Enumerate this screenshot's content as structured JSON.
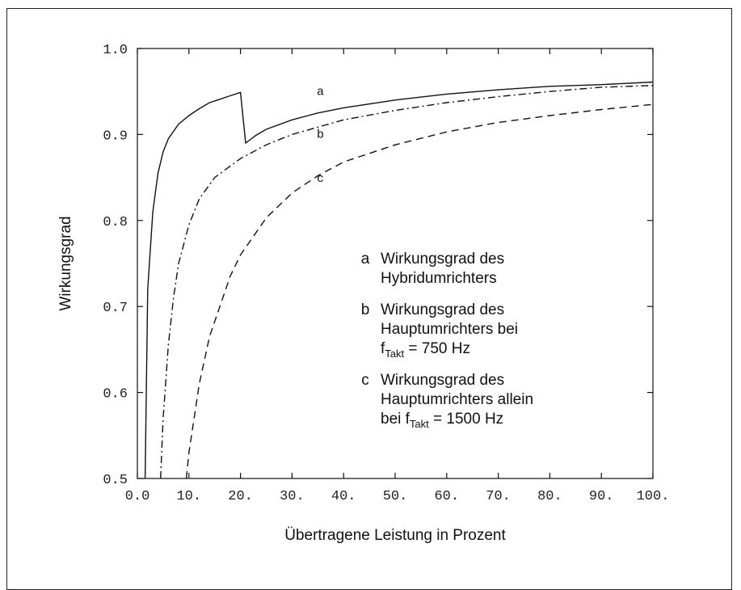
{
  "chart_data": {
    "type": "line",
    "xlabel": "Übertragene Leistung in Prozent",
    "ylabel": "Wirkungsgrad",
    "xlim": [
      0,
      100
    ],
    "ylim": [
      0.5,
      1.0
    ],
    "x_ticks": [
      "0.0",
      "10.",
      "20.",
      "30.",
      "40.",
      "50.",
      "60.",
      "70.",
      "80.",
      "90.",
      "100."
    ],
    "y_ticks": [
      "0.5",
      "0.6",
      "0.7",
      "0.8",
      "0.9",
      "1.0"
    ],
    "grid": false,
    "series": [
      {
        "name": "a",
        "style": "solid",
        "points": [
          [
            1.5,
            0.5
          ],
          [
            2.0,
            0.72
          ],
          [
            3,
            0.81
          ],
          [
            4,
            0.855
          ],
          [
            5,
            0.88
          ],
          [
            6,
            0.895
          ],
          [
            8,
            0.912
          ],
          [
            10,
            0.922
          ],
          [
            12,
            0.93
          ],
          [
            14,
            0.937
          ],
          [
            16,
            0.941
          ],
          [
            18,
            0.945
          ],
          [
            20,
            0.949
          ],
          [
            21,
            0.89
          ],
          [
            23,
            0.899
          ],
          [
            25,
            0.906
          ],
          [
            30,
            0.917
          ],
          [
            35,
            0.925
          ],
          [
            40,
            0.931
          ],
          [
            50,
            0.94
          ],
          [
            60,
            0.947
          ],
          [
            70,
            0.952
          ],
          [
            80,
            0.956
          ],
          [
            90,
            0.958
          ],
          [
            100,
            0.961
          ]
        ]
      },
      {
        "name": "b",
        "style": "dash-dot",
        "points": [
          [
            4.5,
            0.5
          ],
          [
            5,
            0.57
          ],
          [
            6,
            0.655
          ],
          [
            7,
            0.71
          ],
          [
            8,
            0.75
          ],
          [
            10,
            0.795
          ],
          [
            12,
            0.825
          ],
          [
            15,
            0.85
          ],
          [
            20,
            0.872
          ],
          [
            25,
            0.888
          ],
          [
            30,
            0.9
          ],
          [
            40,
            0.917
          ],
          [
            50,
            0.928
          ],
          [
            60,
            0.937
          ],
          [
            70,
            0.944
          ],
          [
            80,
            0.95
          ],
          [
            90,
            0.955
          ],
          [
            100,
            0.957
          ]
        ]
      },
      {
        "name": "c",
        "style": "dashed",
        "points": [
          [
            9.5,
            0.5
          ],
          [
            10,
            0.53
          ],
          [
            12,
            0.61
          ],
          [
            14,
            0.665
          ],
          [
            16,
            0.7
          ],
          [
            18,
            0.735
          ],
          [
            20,
            0.76
          ],
          [
            25,
            0.803
          ],
          [
            30,
            0.832
          ],
          [
            35,
            0.852
          ],
          [
            40,
            0.868
          ],
          [
            50,
            0.888
          ],
          [
            60,
            0.903
          ],
          [
            70,
            0.914
          ],
          [
            80,
            0.922
          ],
          [
            90,
            0.929
          ],
          [
            100,
            0.935
          ]
        ]
      }
    ],
    "curve_labels": [
      {
        "text": "a",
        "x": 35.5,
        "y": 0.946
      },
      {
        "text": "b",
        "x": 35.5,
        "y": 0.896
      },
      {
        "text": "c",
        "x": 35.5,
        "y": 0.845
      }
    ],
    "legend": {
      "placement": "right-middle",
      "entries": [
        {
          "key": "a",
          "lines": [
            "Wirkungsgrad des",
            "Hybridumrichters"
          ]
        },
        {
          "key": "b",
          "lines": [
            "Wirkungsgrad des",
            "Hauptumrichters bei",
            "f_Takt = 750 Hz"
          ]
        },
        {
          "key": "c",
          "lines": [
            "Wirkungsgrad des",
            "Hauptumrichters allein",
            "bei f_Takt = 1500 Hz"
          ]
        }
      ]
    }
  }
}
